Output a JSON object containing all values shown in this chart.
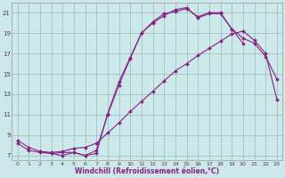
{
  "background_color": "#cce8e8",
  "grid_color": "#99bbbb",
  "line_color": "#882288",
  "xlabel": "Windchill (Refroidissement éolien,°C)",
  "xlim": [
    -0.5,
    23.5
  ],
  "ylim": [
    6.5,
    22.0
  ],
  "xticks": [
    0,
    1,
    2,
    3,
    4,
    5,
    6,
    7,
    8,
    9,
    10,
    11,
    12,
    13,
    14,
    15,
    16,
    17,
    18,
    19,
    20,
    21,
    22,
    23
  ],
  "yticks": [
    7,
    9,
    11,
    13,
    15,
    17,
    19,
    21
  ],
  "curve1_x": [
    0,
    1,
    2,
    3,
    4,
    5,
    6,
    7,
    8,
    9,
    10,
    11,
    12,
    13,
    14,
    15,
    16,
    17,
    18,
    19,
    20,
    21,
    22,
    23
  ],
  "curve1_y": [
    8.2,
    7.5,
    7.3,
    7.2,
    7.3,
    7.3,
    7.0,
    7.2,
    11.1,
    14.2,
    16.6,
    19.0,
    20.1,
    20.9,
    21.1,
    21.4,
    20.6,
    21.0,
    21.0,
    19.4,
    18.0,
    null,
    null,
    null
  ],
  "curve2_x": [
    0,
    1,
    2,
    3,
    4,
    5,
    6,
    7,
    8,
    9,
    10,
    11,
    12,
    13,
    14,
    15,
    16,
    17,
    18,
    19,
    20,
    21,
    22,
    23
  ],
  "curve2_y": [
    8.5,
    7.8,
    7.4,
    7.3,
    7.4,
    7.7,
    7.8,
    8.2,
    9.2,
    10.2,
    11.3,
    12.3,
    13.3,
    14.3,
    15.3,
    16.0,
    16.8,
    17.5,
    18.2,
    18.9,
    19.2,
    18.3,
    17.0,
    12.5
  ],
  "curve3_x": [
    2,
    3,
    4,
    5,
    6,
    7,
    8,
    9,
    10,
    11,
    12,
    13,
    14,
    15,
    16,
    17,
    18,
    19,
    20,
    21,
    22,
    23
  ],
  "curve3_y": [
    7.4,
    7.2,
    7.0,
    7.3,
    7.0,
    7.5,
    11.0,
    13.9,
    16.5,
    19.0,
    20.0,
    20.7,
    21.3,
    21.5,
    20.5,
    20.9,
    20.9,
    19.4,
    18.5,
    18.0,
    16.7,
    14.5
  ],
  "figsize": [
    3.2,
    2.0
  ],
  "dpi": 100
}
